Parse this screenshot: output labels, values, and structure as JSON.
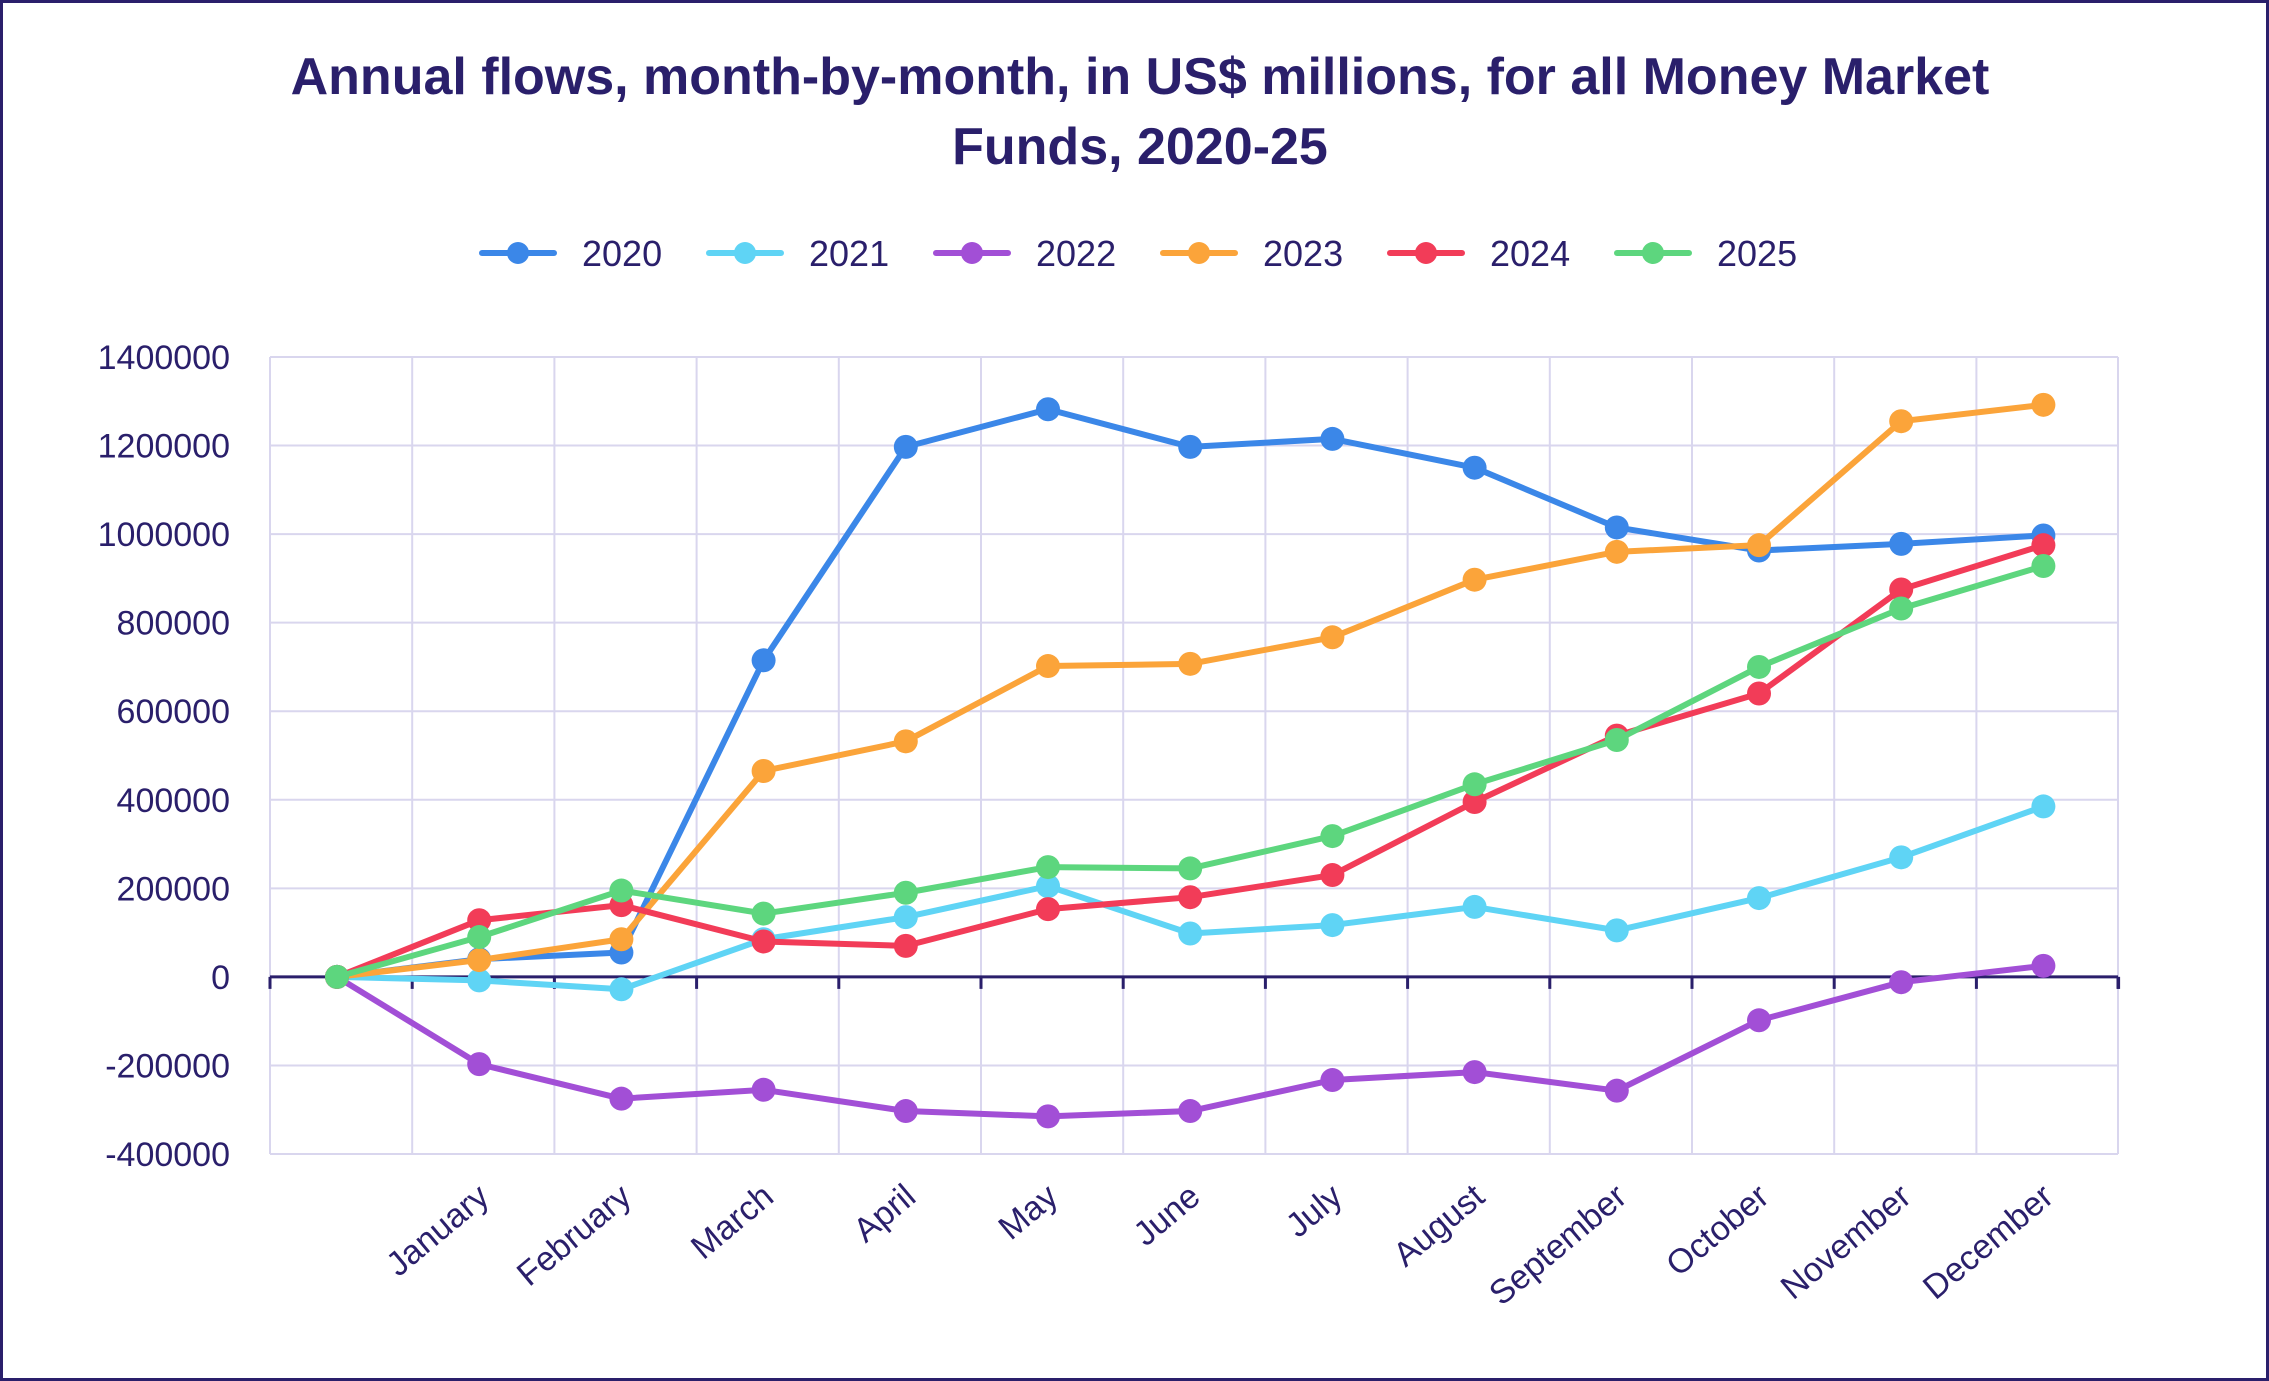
{
  "chart_data": {
    "type": "line",
    "title": "Annual flows, month-by-month, in US$ millions, for all Money Market Funds, 2020-25",
    "xlabel": "",
    "ylabel": "",
    "ylim": [
      -400000,
      1400000
    ],
    "yticks": [
      1400000,
      1200000,
      1000000,
      800000,
      600000,
      400000,
      200000,
      0,
      -200000,
      -400000
    ],
    "ytick_labels": [
      "1400000",
      "1200000",
      "1000000",
      "800000",
      "600000",
      "400000",
      "200000",
      "0",
      "-200000",
      "-400000"
    ],
    "categories": [
      "",
      "January",
      "February",
      "March",
      "April",
      "May",
      "June",
      "July",
      "August",
      "September",
      "October",
      "November",
      "December"
    ],
    "grid": true,
    "legend_position": "top",
    "series": [
      {
        "name": "2020",
        "color": "#3b87e8",
        "values": [
          0,
          40000,
          55000,
          715000,
          1197000,
          1282000,
          1197000,
          1215000,
          1150000,
          1015000,
          963000,
          978000,
          997000
        ]
      },
      {
        "name": "2021",
        "color": "#5fd4f5",
        "values": [
          0,
          -8000,
          -28000,
          85000,
          135000,
          205000,
          98000,
          117000,
          158000,
          105000,
          178000,
          270000,
          385000
        ]
      },
      {
        "name": "2022",
        "color": "#a24fd6",
        "values": [
          0,
          -197000,
          -275000,
          -255000,
          -303000,
          -315000,
          -303000,
          -233000,
          -215000,
          -257000,
          -98000,
          -12000,
          25000
        ]
      },
      {
        "name": "2023",
        "color": "#fba43a",
        "values": [
          0,
          38000,
          85000,
          465000,
          532000,
          702000,
          707000,
          767000,
          897000,
          960000,
          975000,
          1255000,
          1292000
        ]
      },
      {
        "name": "2024",
        "color": "#f23c58",
        "values": [
          0,
          128000,
          162000,
          80000,
          70000,
          153000,
          180000,
          230000,
          395000,
          545000,
          640000,
          875000,
          975000
        ]
      },
      {
        "name": "2025",
        "color": "#5dd67e",
        "values": [
          0,
          90000,
          195000,
          143000,
          190000,
          248000,
          245000,
          318000,
          435000,
          535000,
          700000,
          832000,
          928000
        ]
      }
    ]
  }
}
